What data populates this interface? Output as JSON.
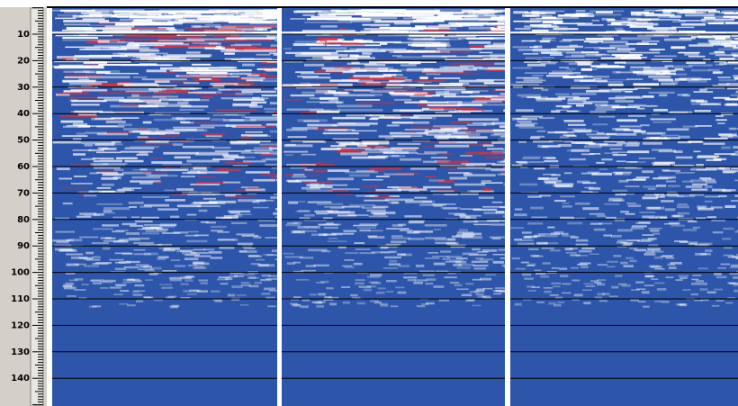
{
  "depth_ruler": {
    "labels": [
      "10",
      "20",
      "30",
      "40",
      "50",
      "60",
      "70",
      "80",
      "90",
      "100",
      "110",
      "120",
      "130",
      "140"
    ]
  }
}
